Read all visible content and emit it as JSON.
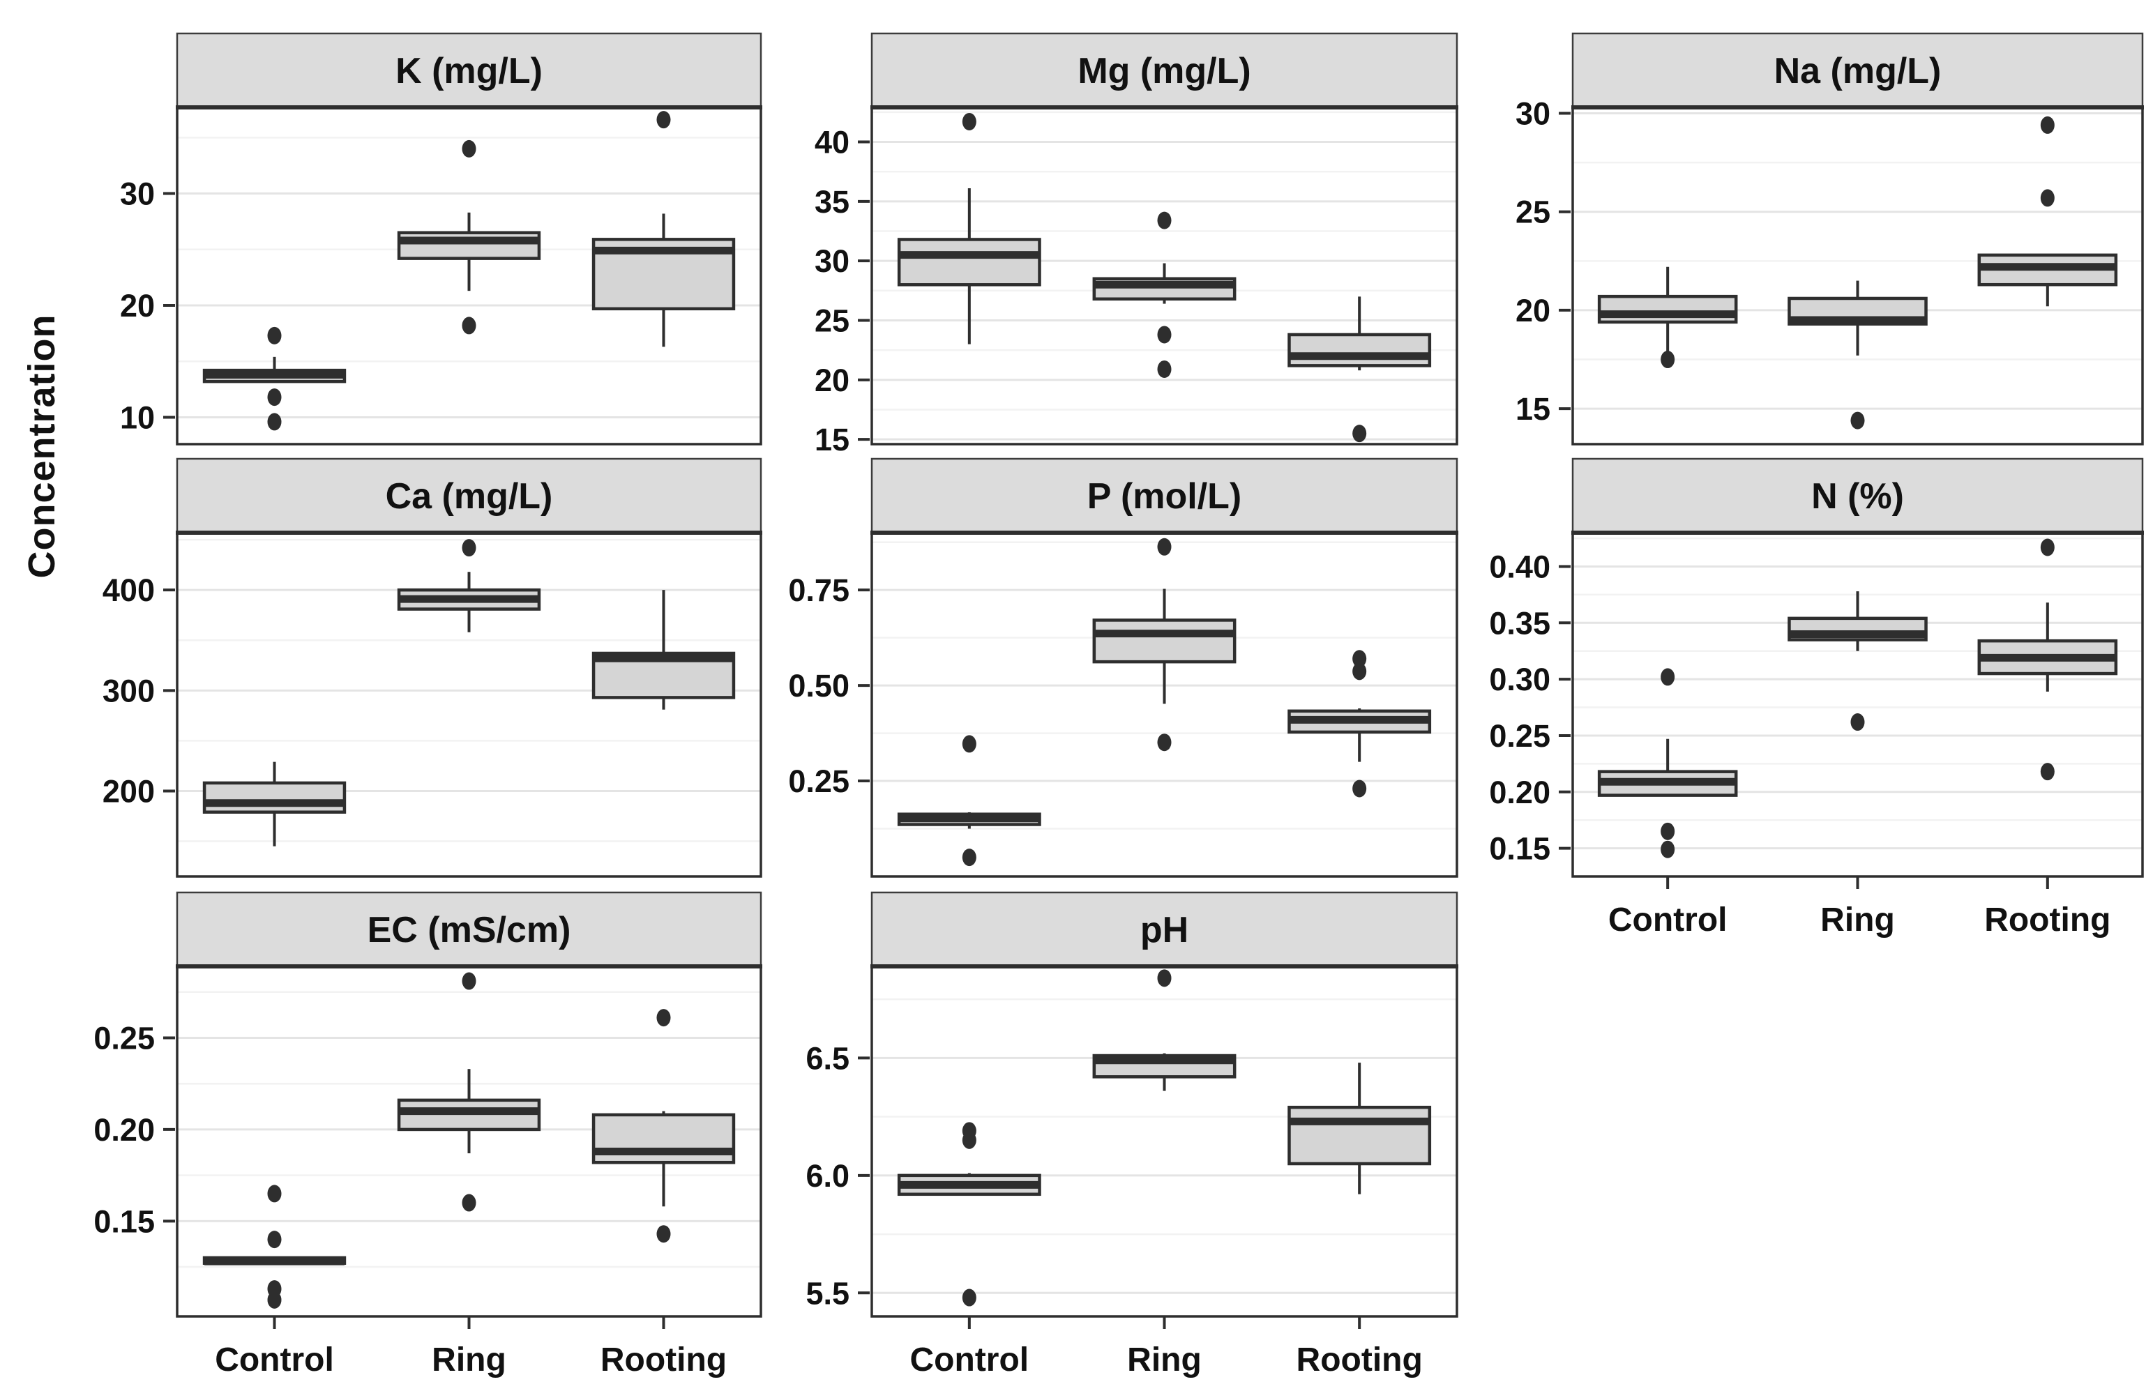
{
  "chart_data": {
    "type": "box",
    "ylabel": "Concentration",
    "groups": [
      "Control",
      "Ring",
      "Rooting"
    ],
    "layout": {
      "grid": "3x3",
      "facet_strip_position": "top",
      "gridlines": "major+minor",
      "legend": "none"
    },
    "facets": [
      {
        "title": "K (mg/L)",
        "row": 0,
        "col": 0,
        "show_x": false,
        "ylim": [
          7.6,
          37.7
        ],
        "yticks": [
          {
            "v": 10,
            "label": "10"
          },
          {
            "v": 20,
            "label": "20"
          },
          {
            "v": 30,
            "label": "30"
          }
        ],
        "boxes": [
          {
            "group": "Control",
            "whisker_low": 13.2,
            "q1": 13.2,
            "median": 13.8,
            "q3": 14.2,
            "whisker_high": 15.4,
            "outliers": [
              17.3,
              11.8,
              9.6
            ]
          },
          {
            "group": "Ring",
            "whisker_low": 21.3,
            "q1": 24.2,
            "median": 25.8,
            "q3": 26.5,
            "whisker_high": 28.3,
            "outliers": [
              34.0,
              18.2
            ]
          },
          {
            "group": "Rooting",
            "whisker_low": 16.3,
            "q1": 19.7,
            "median": 24.9,
            "q3": 25.9,
            "whisker_high": 28.2,
            "outliers": [
              36.6
            ]
          }
        ]
      },
      {
        "title": "Mg (mg/L)",
        "row": 0,
        "col": 1,
        "show_x": false,
        "ylim": [
          14.6,
          42.9
        ],
        "yticks": [
          {
            "v": 15,
            "label": "15"
          },
          {
            "v": 20,
            "label": "20"
          },
          {
            "v": 25,
            "label": "25"
          },
          {
            "v": 30,
            "label": "30"
          },
          {
            "v": 35,
            "label": "35"
          },
          {
            "v": 40,
            "label": "40"
          }
        ],
        "boxes": [
          {
            "group": "Control",
            "whisker_low": 23.0,
            "q1": 28.0,
            "median": 30.5,
            "q3": 31.8,
            "whisker_high": 36.1,
            "outliers": [
              41.7
            ]
          },
          {
            "group": "Ring",
            "whisker_low": 26.4,
            "q1": 26.8,
            "median": 28.0,
            "q3": 28.5,
            "whisker_high": 29.8,
            "outliers": [
              33.4,
              23.8,
              20.9
            ]
          },
          {
            "group": "Rooting",
            "whisker_low": 20.8,
            "q1": 21.2,
            "median": 22.0,
            "q3": 23.8,
            "whisker_high": 27.0,
            "outliers": [
              15.5
            ]
          }
        ]
      },
      {
        "title": "Na (mg/L)",
        "row": 0,
        "col": 2,
        "show_x": false,
        "ylim": [
          13.2,
          30.3
        ],
        "yticks": [
          {
            "v": 15,
            "label": "15"
          },
          {
            "v": 20,
            "label": "20"
          },
          {
            "v": 25,
            "label": "25"
          },
          {
            "v": 30,
            "label": "30"
          }
        ],
        "boxes": [
          {
            "group": "Control",
            "whisker_low": 17.9,
            "q1": 19.4,
            "median": 19.8,
            "q3": 20.7,
            "whisker_high": 22.2,
            "outliers": [
              17.5
            ]
          },
          {
            "group": "Ring",
            "whisker_low": 17.7,
            "q1": 19.3,
            "median": 19.5,
            "q3": 20.6,
            "whisker_high": 21.5,
            "outliers": [
              14.4
            ]
          },
          {
            "group": "Rooting",
            "whisker_low": 20.2,
            "q1": 21.3,
            "median": 22.2,
            "q3": 22.8,
            "whisker_high": 22.8,
            "outliers": [
              29.4,
              25.7
            ]
          }
        ]
      },
      {
        "title": "Ca (mg/L)",
        "row": 1,
        "col": 0,
        "show_x": false,
        "ylim": [
          115,
          457
        ],
        "yticks": [
          {
            "v": 200,
            "label": "200"
          },
          {
            "v": 300,
            "label": "300"
          },
          {
            "v": 400,
            "label": "400"
          }
        ],
        "boxes": [
          {
            "group": "Control",
            "whisker_low": 145,
            "q1": 179,
            "median": 188,
            "q3": 208,
            "whisker_high": 229,
            "outliers": []
          },
          {
            "group": "Ring",
            "whisker_low": 358,
            "q1": 381,
            "median": 391,
            "q3": 400,
            "whisker_high": 418,
            "outliers": [
              442
            ]
          },
          {
            "group": "Rooting",
            "whisker_low": 281,
            "q1": 293,
            "median": 332,
            "q3": 337,
            "whisker_high": 400,
            "outliers": []
          }
        ]
      },
      {
        "title": "P (mol/L)",
        "row": 1,
        "col": 1,
        "show_x": false,
        "ylim": [
          0.0,
          0.9
        ],
        "yticks": [
          {
            "v": 0.25,
            "label": "0.25"
          },
          {
            "v": 0.5,
            "label": "0.50"
          },
          {
            "v": 0.75,
            "label": "0.75"
          }
        ],
        "boxes": [
          {
            "group": "Control",
            "whisker_low": 0.125,
            "q1": 0.136,
            "median": 0.152,
            "q3": 0.163,
            "whisker_high": 0.168,
            "outliers": [
              0.347,
              0.05
            ]
          },
          {
            "group": "Ring",
            "whisker_low": 0.452,
            "q1": 0.562,
            "median": 0.636,
            "q3": 0.671,
            "whisker_high": 0.753,
            "outliers": [
              0.863,
              0.351
            ]
          },
          {
            "group": "Rooting",
            "whisker_low": 0.3,
            "q1": 0.378,
            "median": 0.41,
            "q3": 0.433,
            "whisker_high": 0.44,
            "outliers": [
              0.57,
              0.537,
              0.23
            ]
          }
        ]
      },
      {
        "title": "N (%)",
        "row": 1,
        "col": 2,
        "show_x": true,
        "ylim": [
          0.125,
          0.43
        ],
        "yticks": [
          {
            "v": 0.15,
            "label": "0.15"
          },
          {
            "v": 0.2,
            "label": "0.20"
          },
          {
            "v": 0.25,
            "label": "0.25"
          },
          {
            "v": 0.3,
            "label": "0.30"
          },
          {
            "v": 0.35,
            "label": "0.35"
          },
          {
            "v": 0.4,
            "label": "0.40"
          }
        ],
        "boxes": [
          {
            "group": "Control",
            "whisker_low": 0.197,
            "q1": 0.197,
            "median": 0.209,
            "q3": 0.218,
            "whisker_high": 0.247,
            "outliers": [
              0.302,
              0.165,
              0.149
            ]
          },
          {
            "group": "Ring",
            "whisker_low": 0.325,
            "q1": 0.335,
            "median": 0.34,
            "q3": 0.354,
            "whisker_high": 0.378,
            "outliers": [
              0.262
            ]
          },
          {
            "group": "Rooting",
            "whisker_low": 0.289,
            "q1": 0.305,
            "median": 0.319,
            "q3": 0.334,
            "whisker_high": 0.368,
            "outliers": [
              0.417,
              0.218
            ]
          }
        ]
      },
      {
        "title": "EC (mS/cm)",
        "row": 2,
        "col": 0,
        "show_x": true,
        "ylim": [
          0.098,
          0.289
        ],
        "yticks": [
          {
            "v": 0.15,
            "label": "0.15"
          },
          {
            "v": 0.2,
            "label": "0.20"
          },
          {
            "v": 0.25,
            "label": "0.25"
          }
        ],
        "boxes": [
          {
            "group": "Control",
            "whisker_low": 0.127,
            "q1": 0.127,
            "median": 0.128,
            "q3": 0.13,
            "whisker_high": 0.13,
            "outliers": [
              0.165,
              0.14,
              0.113,
              0.107
            ]
          },
          {
            "group": "Ring",
            "whisker_low": 0.187,
            "q1": 0.2,
            "median": 0.21,
            "q3": 0.216,
            "whisker_high": 0.233,
            "outliers": [
              0.281,
              0.16
            ]
          },
          {
            "group": "Rooting",
            "whisker_low": 0.158,
            "q1": 0.182,
            "median": 0.188,
            "q3": 0.208,
            "whisker_high": 0.21,
            "outliers": [
              0.261,
              0.143
            ]
          }
        ]
      },
      {
        "title": "pH",
        "row": 2,
        "col": 1,
        "show_x": true,
        "ylim": [
          5.4,
          6.89
        ],
        "yticks": [
          {
            "v": 5.5,
            "label": "5.5"
          },
          {
            "v": 6.0,
            "label": "6.0"
          },
          {
            "v": 6.5,
            "label": "6.5"
          }
        ],
        "boxes": [
          {
            "group": "Control",
            "whisker_low": 5.92,
            "q1": 5.92,
            "median": 5.96,
            "q3": 6.0,
            "whisker_high": 6.01,
            "outliers": [
              6.19,
              6.15,
              5.48
            ]
          },
          {
            "group": "Ring",
            "whisker_low": 6.36,
            "q1": 6.42,
            "median": 6.49,
            "q3": 6.51,
            "whisker_high": 6.52,
            "outliers": [
              6.84
            ]
          },
          {
            "group": "Rooting",
            "whisker_low": 5.92,
            "q1": 6.05,
            "median": 6.23,
            "q3": 6.29,
            "whisker_high": 6.48,
            "outliers": []
          }
        ]
      }
    ]
  },
  "style": {
    "background": "#ffffff",
    "strip_fill": "#dcdcdc",
    "strip_border": "#3c3c3c",
    "panel_border": "#2e2e2e",
    "box_fill": "#d5d5d5",
    "line_color": "#2e2e2e",
    "grid_major": "#e4e4e4",
    "grid_minor": "#f2f2f2",
    "text_color": "#111111"
  }
}
